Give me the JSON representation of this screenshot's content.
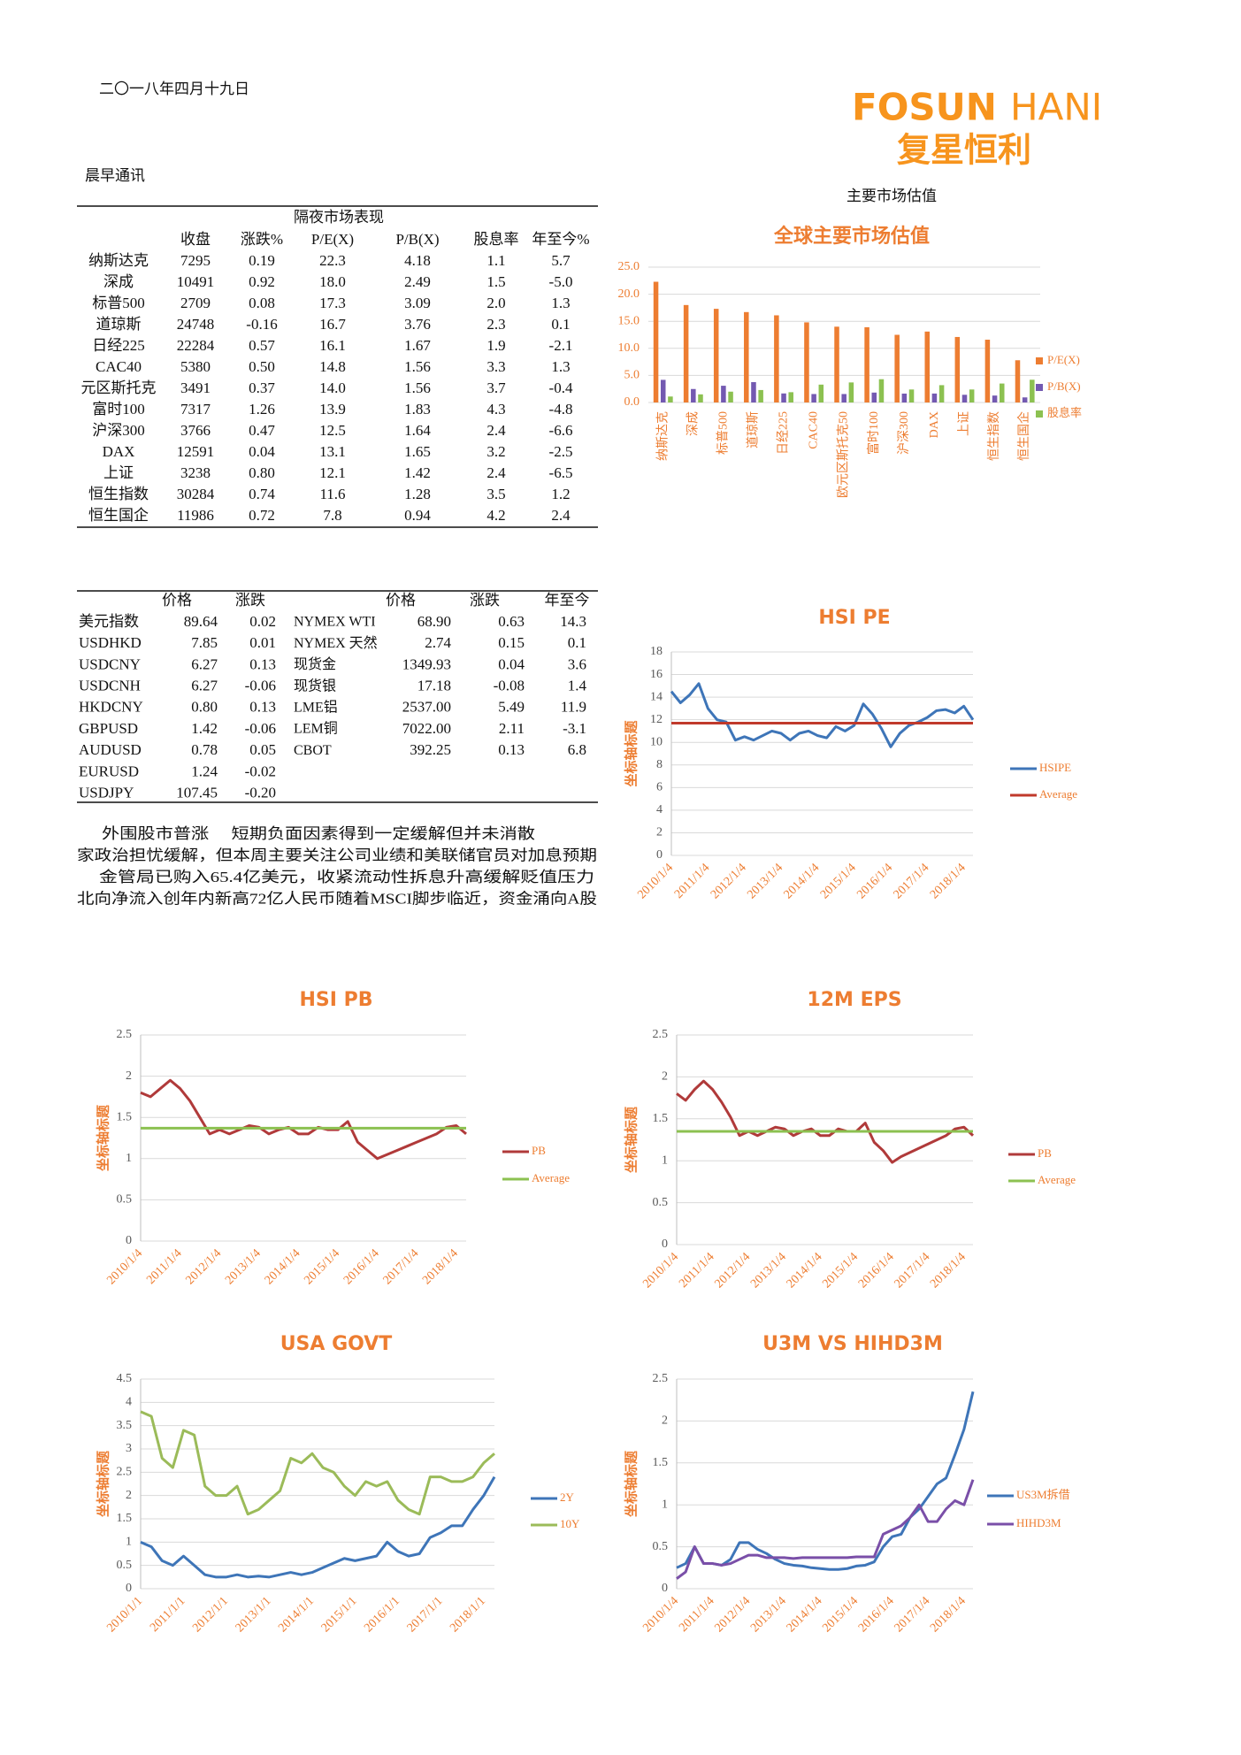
{
  "header": {
    "date": "二〇一八年四月十九日",
    "logo_en_1": "FOSUN",
    "logo_en_2": "HANI",
    "logo_cn": "复星恒利",
    "section": "晨早通讯",
    "right_title": "主要市场估值"
  },
  "table1": {
    "title": "隔夜市场表现",
    "headers": [
      "收盘",
      "涨跌%",
      "P/E(X)",
      "P/B(X)",
      "股息率",
      "年至今%"
    ],
    "rows": [
      [
        "纳斯达克",
        "7295",
        "0.19",
        "22.3",
        "4.18",
        "1.1",
        "5.7"
      ],
      [
        "深成",
        "10491",
        "0.92",
        "18.0",
        "2.49",
        "1.5",
        "-5.0"
      ],
      [
        "标普500",
        "2709",
        "0.08",
        "17.3",
        "3.09",
        "2.0",
        "1.3"
      ],
      [
        "道琼斯",
        "24748",
        "-0.16",
        "16.7",
        "3.76",
        "2.3",
        "0.1"
      ],
      [
        "日经225",
        "22284",
        "0.57",
        "16.1",
        "1.67",
        "1.9",
        "-2.1"
      ],
      [
        "CAC40",
        "5380",
        "0.50",
        "14.8",
        "1.56",
        "3.3",
        "1.3"
      ],
      [
        "元区斯托克",
        "3491",
        "0.37",
        "14.0",
        "1.56",
        "3.7",
        "-0.4"
      ],
      [
        "富时100",
        "7317",
        "1.26",
        "13.9",
        "1.83",
        "4.3",
        "-4.8"
      ],
      [
        "沪深300",
        "3766",
        "0.47",
        "12.5",
        "1.64",
        "2.4",
        "-6.6"
      ],
      [
        "DAX",
        "12591",
        "0.04",
        "13.1",
        "1.65",
        "3.2",
        "-2.5"
      ],
      [
        "上证",
        "3238",
        "0.80",
        "12.1",
        "1.42",
        "2.4",
        "-6.5"
      ],
      [
        "恒生指数",
        "30284",
        "0.74",
        "11.6",
        "1.28",
        "3.5",
        "1.2"
      ],
      [
        "恒生国企",
        "11986",
        "0.72",
        "7.8",
        "0.94",
        "4.2",
        "2.4"
      ]
    ]
  },
  "table2": {
    "left": {
      "headers": [
        "价格",
        "涨跌"
      ],
      "rows": [
        [
          "美元指数",
          "89.64",
          "0.02"
        ],
        [
          "USDHKD",
          "7.85",
          "0.01"
        ],
        [
          "USDCNY",
          "6.27",
          "0.13"
        ],
        [
          "USDCNH",
          "6.27",
          "-0.06"
        ],
        [
          "HKDCNY",
          "0.80",
          "0.13"
        ],
        [
          "GBPUSD",
          "1.42",
          "-0.06"
        ],
        [
          "AUDUSD",
          "0.78",
          "0.05"
        ],
        [
          "EURUSD",
          "1.24",
          "-0.02"
        ],
        [
          "USDJPY",
          "107.45",
          "-0.20"
        ]
      ]
    },
    "right": {
      "headers": [
        "价格",
        "涨跌",
        "年至今"
      ],
      "rows": [
        [
          "NYMEX WTI",
          "68.90",
          "0.63",
          "14.3"
        ],
        [
          "NYMEX 天然",
          "2.74",
          "0.15",
          "0.1"
        ],
        [
          "现货金",
          "1349.93",
          "0.04",
          "3.6"
        ],
        [
          "现货银",
          "17.18",
          "-0.08",
          "1.4"
        ],
        [
          "LME铝",
          "2537.00",
          "5.49",
          "11.9"
        ],
        [
          "LEM铜",
          "7022.00",
          "2.11",
          "-3.1"
        ],
        [
          "CBOT",
          "392.25",
          "0.13",
          "6.8"
        ]
      ]
    }
  },
  "notes": [
    "外围股市普涨　 短期负面因素得到一定缓解但并未消散",
    "家政治担忧缓解，但本周主要关注公司业绩和美联储官员对加息预期",
    "金管局已购入65.4亿美元，收紧流动性拆息升高缓解贬值压力",
    "北向净流入创年内新高72亿人民币随着MSCI脚步临近，资金涌向A股"
  ],
  "chart_data": [
    {
      "type": "bar",
      "title": "全球主要市场估值",
      "categories": [
        "纳斯达克",
        "深成",
        "标普500",
        "道琼斯",
        "日经225",
        "CAC40",
        "欧元区斯托克50",
        "富时100",
        "沪深300",
        "DAX",
        "上证",
        "恒生指数",
        "恒生国企"
      ],
      "series": [
        {
          "name": "P/E(X)",
          "color": "#ed7d31",
          "values": [
            22.3,
            18.0,
            17.3,
            16.7,
            16.1,
            14.8,
            14.0,
            13.9,
            12.5,
            13.1,
            12.1,
            11.6,
            7.8
          ]
        },
        {
          "name": "P/B(X)",
          "color": "#7359b1",
          "values": [
            4.18,
            2.49,
            3.09,
            3.76,
            1.67,
            1.56,
            1.56,
            1.83,
            1.64,
            1.65,
            1.42,
            1.28,
            0.94
          ]
        },
        {
          "name": "股息率",
          "color": "#8cc151",
          "values": [
            1.1,
            1.5,
            2.0,
            2.3,
            1.9,
            3.3,
            3.7,
            4.3,
            2.4,
            3.2,
            2.4,
            3.5,
            4.2
          ]
        }
      ],
      "ylim": [
        0,
        25
      ],
      "yticks": [
        {
          "value": 0,
          "label": "0.0"
        },
        {
          "value": 5,
          "label": "5.0"
        },
        {
          "value": 10,
          "label": "10.0"
        },
        {
          "value": 15,
          "label": "15.0"
        },
        {
          "value": 20,
          "label": "20.0"
        },
        {
          "value": 25,
          "label": "25.0"
        }
      ],
      "grid": true,
      "legend": "right"
    },
    {
      "type": "line",
      "title": "HSI PE",
      "y_label": "坐标轴标题",
      "categories": [
        "2010/1/4",
        null,
        null,
        null,
        "2011/1/4",
        null,
        null,
        null,
        "2012/1/4",
        null,
        null,
        null,
        "2013/1/4",
        null,
        null,
        null,
        "2014/1/4",
        null,
        null,
        null,
        "2015/1/4",
        null,
        null,
        null,
        "2016/1/4",
        null,
        null,
        null,
        "2017/1/4",
        null,
        null,
        null,
        "2018/1/4",
        null
      ],
      "series": [
        {
          "name": "HSIPE",
          "color": "#3e75b8",
          "values": [
            14.5,
            13.5,
            14.2,
            15.2,
            13.0,
            12.0,
            11.8,
            10.2,
            10.5,
            10.2,
            10.6,
            11.0,
            10.8,
            10.2,
            10.8,
            11.0,
            10.6,
            10.4,
            11.4,
            11.0,
            11.5,
            13.4,
            12.5,
            11.2,
            9.6,
            10.8,
            11.5,
            11.8,
            12.2,
            12.8,
            12.9,
            12.6,
            13.2,
            12.0
          ]
        },
        {
          "name": "Average",
          "color": "#c0392b",
          "values": [
            11.7,
            11.7,
            11.7,
            11.7,
            11.7,
            11.7,
            11.7,
            11.7,
            11.7,
            11.7,
            11.7,
            11.7,
            11.7,
            11.7,
            11.7,
            11.7,
            11.7,
            11.7,
            11.7,
            11.7,
            11.7,
            11.7,
            11.7,
            11.7,
            11.7,
            11.7,
            11.7,
            11.7,
            11.7,
            11.7,
            11.7,
            11.7,
            11.7,
            11.7
          ]
        }
      ],
      "ylim": [
        0,
        18
      ],
      "yticks": [
        0,
        2,
        4,
        6,
        8,
        10,
        12,
        14,
        16,
        18
      ],
      "grid": true,
      "legend": "right"
    },
    {
      "type": "line",
      "title": "HSI PB",
      "y_label": "坐标轴标题",
      "categories": [
        "2010/1/4",
        null,
        null,
        null,
        "2011/1/4",
        null,
        null,
        null,
        "2012/1/4",
        null,
        null,
        null,
        "2013/1/4",
        null,
        null,
        null,
        "2014/1/4",
        null,
        null,
        null,
        "2015/1/4",
        null,
        null,
        null,
        "2016/1/4",
        null,
        null,
        null,
        "2017/1/4",
        null,
        null,
        null,
        "2018/1/4",
        null
      ],
      "series": [
        {
          "name": "PB",
          "color": "#b03a3a",
          "values": [
            1.8,
            1.75,
            1.85,
            1.95,
            1.85,
            1.7,
            1.5,
            1.3,
            1.35,
            1.3,
            1.35,
            1.4,
            1.38,
            1.3,
            1.35,
            1.38,
            1.3,
            1.3,
            1.38,
            1.35,
            1.35,
            1.45,
            1.2,
            1.1,
            1.0,
            1.05,
            1.1,
            1.15,
            1.2,
            1.25,
            1.3,
            1.38,
            1.4,
            1.3
          ]
        },
        {
          "name": "Average",
          "color": "#8cc151",
          "values": [
            1.37,
            1.37,
            1.37,
            1.37,
            1.37,
            1.37,
            1.37,
            1.37,
            1.37,
            1.37,
            1.37,
            1.37,
            1.37,
            1.37,
            1.37,
            1.37,
            1.37,
            1.37,
            1.37,
            1.37,
            1.37,
            1.37,
            1.37,
            1.37,
            1.37,
            1.37,
            1.37,
            1.37,
            1.37,
            1.37,
            1.37,
            1.37,
            1.37,
            1.37
          ]
        }
      ],
      "ylim": [
        0,
        2.5
      ],
      "yticks": [
        0,
        0.5,
        1,
        1.5,
        2,
        2.5
      ],
      "grid": true,
      "legend": "right"
    },
    {
      "type": "line",
      "title": "12M EPS",
      "y_label": "坐标轴标题",
      "categories": [
        "2010/1/4",
        null,
        null,
        null,
        "2011/1/4",
        null,
        null,
        null,
        "2012/1/4",
        null,
        null,
        null,
        "2013/1/4",
        null,
        null,
        null,
        "2014/1/4",
        null,
        null,
        null,
        "2015/1/4",
        null,
        null,
        null,
        "2016/1/4",
        null,
        null,
        null,
        "2017/1/4",
        null,
        null,
        null,
        "2018/1/4",
        null
      ],
      "series": [
        {
          "name": "PB",
          "color": "#b03a3a",
          "values": [
            1.8,
            1.72,
            1.85,
            1.95,
            1.85,
            1.7,
            1.52,
            1.3,
            1.35,
            1.3,
            1.35,
            1.4,
            1.38,
            1.3,
            1.35,
            1.38,
            1.3,
            1.3,
            1.38,
            1.35,
            1.35,
            1.45,
            1.22,
            1.12,
            0.98,
            1.05,
            1.1,
            1.15,
            1.2,
            1.25,
            1.3,
            1.38,
            1.4,
            1.3
          ]
        },
        {
          "name": "Average",
          "color": "#8cc151",
          "values": [
            1.35,
            1.35,
            1.35,
            1.35,
            1.35,
            1.35,
            1.35,
            1.35,
            1.35,
            1.35,
            1.35,
            1.35,
            1.35,
            1.35,
            1.35,
            1.35,
            1.35,
            1.35,
            1.35,
            1.35,
            1.35,
            1.35,
            1.35,
            1.35,
            1.35,
            1.35,
            1.35,
            1.35,
            1.35,
            1.35,
            1.35,
            1.35,
            1.35,
            1.35
          ]
        }
      ],
      "ylim": [
        0,
        2.5
      ],
      "yticks": [
        0,
        0.5,
        1,
        1.5,
        2,
        2.5
      ],
      "grid": true,
      "legend": "right"
    },
    {
      "type": "line",
      "title": "USA GOVT",
      "y_label": "坐标轴标题",
      "categories": [
        "2010/1/1",
        null,
        null,
        null,
        "2011/1/1",
        null,
        null,
        null,
        "2012/1/1",
        null,
        null,
        null,
        "2013/1/1",
        null,
        null,
        null,
        "2014/1/1",
        null,
        null,
        null,
        "2015/1/1",
        null,
        null,
        null,
        "2016/1/1",
        null,
        null,
        null,
        "2017/1/1",
        null,
        null,
        null,
        "2018/1/1",
        null
      ],
      "series": [
        {
          "name": "2Y",
          "color": "#3e75b8",
          "values": [
            1.0,
            0.9,
            0.6,
            0.5,
            0.7,
            0.5,
            0.3,
            0.25,
            0.25,
            0.3,
            0.25,
            0.27,
            0.25,
            0.3,
            0.35,
            0.3,
            0.35,
            0.45,
            0.55,
            0.65,
            0.6,
            0.65,
            0.7,
            1.0,
            0.8,
            0.7,
            0.75,
            1.1,
            1.2,
            1.35,
            1.35,
            1.7,
            2.0,
            2.4
          ]
        },
        {
          "name": "10Y",
          "color": "#9bbb59",
          "values": [
            3.8,
            3.7,
            2.8,
            2.6,
            3.4,
            3.3,
            2.2,
            2.0,
            2.0,
            2.2,
            1.6,
            1.7,
            1.9,
            2.1,
            2.8,
            2.7,
            2.9,
            2.6,
            2.5,
            2.2,
            2.0,
            2.3,
            2.2,
            2.3,
            1.9,
            1.7,
            1.6,
            2.4,
            2.4,
            2.3,
            2.3,
            2.4,
            2.7,
            2.9
          ]
        }
      ],
      "ylim": [
        0,
        4.5
      ],
      "yticks": [
        0,
        0.5,
        1,
        1.5,
        2,
        2.5,
        3,
        3.5,
        4,
        4.5
      ],
      "grid": true,
      "legend": "right"
    },
    {
      "type": "line",
      "title": "U3M VS HIHD3M",
      "y_label": "坐标轴标题",
      "categories": [
        "2010/1/4",
        null,
        null,
        null,
        "2011/1/4",
        null,
        null,
        null,
        "2012/1/4",
        null,
        null,
        null,
        "2013/1/4",
        null,
        null,
        null,
        "2014/1/4",
        null,
        null,
        null,
        "2015/1/4",
        null,
        null,
        null,
        "2016/1/4",
        null,
        null,
        null,
        "2017/1/4",
        null,
        null,
        null,
        "2018/1/4",
        null
      ],
      "series": [
        {
          "name": "US3M拆借",
          "color": "#3e75b8",
          "values": [
            0.25,
            0.3,
            0.5,
            0.3,
            0.3,
            0.28,
            0.35,
            0.55,
            0.55,
            0.47,
            0.42,
            0.35,
            0.3,
            0.28,
            0.27,
            0.25,
            0.24,
            0.23,
            0.23,
            0.24,
            0.27,
            0.28,
            0.32,
            0.5,
            0.62,
            0.65,
            0.85,
            0.95,
            1.1,
            1.25,
            1.32,
            1.6,
            1.9,
            2.35
          ]
        },
        {
          "name": "HIHD3M",
          "color": "#7a4fa8",
          "values": [
            0.12,
            0.2,
            0.5,
            0.3,
            0.3,
            0.28,
            0.3,
            0.35,
            0.4,
            0.4,
            0.37,
            0.37,
            0.37,
            0.36,
            0.37,
            0.37,
            0.37,
            0.37,
            0.37,
            0.37,
            0.38,
            0.38,
            0.38,
            0.65,
            0.7,
            0.75,
            0.85,
            1.0,
            0.8,
            0.8,
            0.95,
            1.05,
            1.0,
            1.3
          ]
        }
      ],
      "ylim": [
        0,
        2.5
      ],
      "yticks": [
        0,
        0.5,
        1,
        1.5,
        2,
        2.5
      ],
      "grid": true,
      "legend": "right"
    }
  ]
}
